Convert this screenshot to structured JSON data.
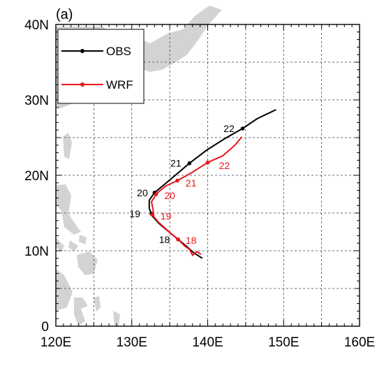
{
  "panel_label": "(a)",
  "colors": {
    "obs": "#000000",
    "wrf": "#e8141a",
    "land": "#d3d3d3",
    "grid": "#444444"
  },
  "chart_data": {
    "type": "line",
    "map": true,
    "xlim": [
      120,
      160
    ],
    "ylim": [
      0,
      40
    ],
    "x_ticks": [
      {
        "v": 120,
        "label": "120E"
      },
      {
        "v": 130,
        "label": "130E"
      },
      {
        "v": 140,
        "label": "140E"
      },
      {
        "v": 150,
        "label": "150E"
      },
      {
        "v": 160,
        "label": "160E"
      }
    ],
    "y_ticks": [
      {
        "v": 0,
        "label": "0"
      },
      {
        "v": 10,
        "label": "10N"
      },
      {
        "v": 20,
        "label": "20N"
      },
      {
        "v": 30,
        "label": "30N"
      },
      {
        "v": 40,
        "label": "40N"
      }
    ],
    "grid": true,
    "legend_position": "top-left",
    "series": [
      {
        "name": "OBS",
        "color": "#000000",
        "points": [
          [
            139.3,
            9.0
          ],
          [
            138.2,
            9.7
          ],
          [
            137.2,
            10.6
          ],
          [
            136.1,
            11.5
          ],
          [
            134.9,
            12.5
          ],
          [
            133.6,
            13.6
          ],
          [
            132.7,
            14.6
          ],
          [
            132.3,
            15.6
          ],
          [
            132.3,
            16.7
          ],
          [
            133.0,
            17.7
          ],
          [
            134.9,
            19.3
          ],
          [
            137.6,
            21.6
          ],
          [
            139.8,
            23.3
          ],
          [
            142.3,
            24.9
          ],
          [
            144.6,
            26.2
          ],
          [
            146.5,
            27.5
          ],
          [
            149.0,
            28.7
          ]
        ],
        "day_marks": [
          {
            "day": "18",
            "lon": 136.1,
            "lat": 11.5,
            "label_lon": 134.3,
            "label_lat": 11.5
          },
          {
            "day": "19",
            "lon": 132.6,
            "lat": 14.9,
            "label_lon": 130.4,
            "label_lat": 14.9
          },
          {
            "day": "20",
            "lon": 133.0,
            "lat": 17.7,
            "label_lon": 131.4,
            "label_lat": 17.7
          },
          {
            "day": "21",
            "lon": 137.6,
            "lat": 21.6,
            "label_lon": 135.8,
            "label_lat": 21.6
          },
          {
            "day": "22",
            "lon": 144.6,
            "lat": 26.2,
            "label_lon": 142.8,
            "label_lat": 26.2
          }
        ]
      },
      {
        "name": "WRF",
        "color": "#e8141a",
        "points": [
          [
            139.1,
            9.5
          ],
          [
            138.6,
            9.9
          ],
          [
            138.0,
            9.4
          ],
          [
            137.6,
            10.2
          ],
          [
            137.0,
            10.6
          ],
          [
            136.1,
            11.5
          ],
          [
            134.8,
            12.6
          ],
          [
            133.6,
            13.7
          ],
          [
            132.9,
            14.5
          ],
          [
            132.8,
            15.5
          ],
          [
            132.6,
            16.5
          ],
          [
            133.3,
            17.6
          ],
          [
            134.5,
            18.6
          ],
          [
            136.0,
            19.3
          ],
          [
            137.8,
            20.3
          ],
          [
            140.0,
            21.7
          ],
          [
            142.0,
            22.6
          ],
          [
            143.6,
            24.0
          ],
          [
            144.5,
            25.1
          ]
        ],
        "day_marks": [
          {
            "day": "18",
            "lon": 136.1,
            "lat": 11.5,
            "label_lon": 137.8,
            "label_lat": 11.4
          },
          {
            "day": "19",
            "lon": 132.7,
            "lat": 14.8,
            "label_lon": 134.5,
            "label_lat": 14.6
          },
          {
            "day": "20",
            "lon": 133.2,
            "lat": 17.5,
            "label_lon": 135.0,
            "label_lat": 17.3
          },
          {
            "day": "21",
            "lon": 136.0,
            "lat": 19.3,
            "label_lon": 137.8,
            "label_lat": 19.0
          },
          {
            "day": "22",
            "lon": 140.0,
            "lat": 21.7,
            "label_lon": 142.2,
            "label_lat": 21.3
          }
        ]
      }
    ]
  }
}
